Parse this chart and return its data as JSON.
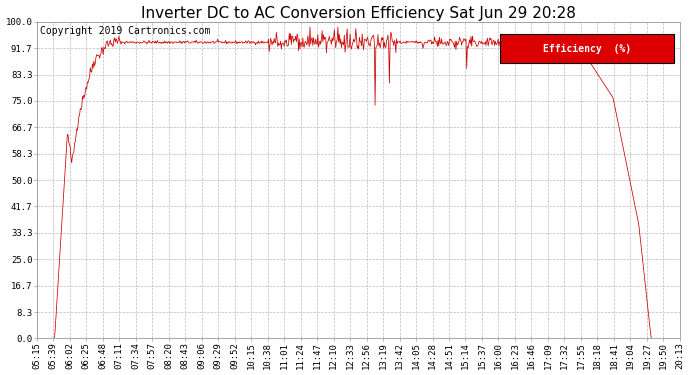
{
  "title": "Inverter DC to AC Conversion Efficiency Sat Jun 29 20:28",
  "copyright": "Copyright 2019 Cartronics.com",
  "legend_label": "Efficiency  (%)",
  "legend_bg": "#dd0000",
  "legend_fg": "#ffffff",
  "line_color": "#cc0000",
  "bg_color": "#ffffff",
  "grid_color": "#bbbbbb",
  "yticks": [
    0.0,
    8.3,
    16.7,
    25.0,
    33.3,
    41.7,
    50.0,
    58.3,
    66.7,
    75.0,
    83.3,
    91.7,
    100.0
  ],
  "xtick_labels": [
    "05:15",
    "05:39",
    "06:02",
    "06:25",
    "06:48",
    "07:11",
    "07:34",
    "07:57",
    "08:20",
    "08:43",
    "09:06",
    "09:29",
    "09:52",
    "10:15",
    "10:38",
    "11:01",
    "11:24",
    "11:47",
    "12:10",
    "12:33",
    "12:56",
    "13:19",
    "13:42",
    "14:05",
    "14:28",
    "14:51",
    "15:14",
    "15:37",
    "16:00",
    "16:23",
    "16:46",
    "17:09",
    "17:32",
    "17:55",
    "18:18",
    "18:41",
    "19:04",
    "19:27",
    "19:50",
    "20:13"
  ],
  "ylim": [
    0,
    100
  ],
  "title_fontsize": 11,
  "axis_fontsize": 6.5,
  "copyright_fontsize": 7
}
